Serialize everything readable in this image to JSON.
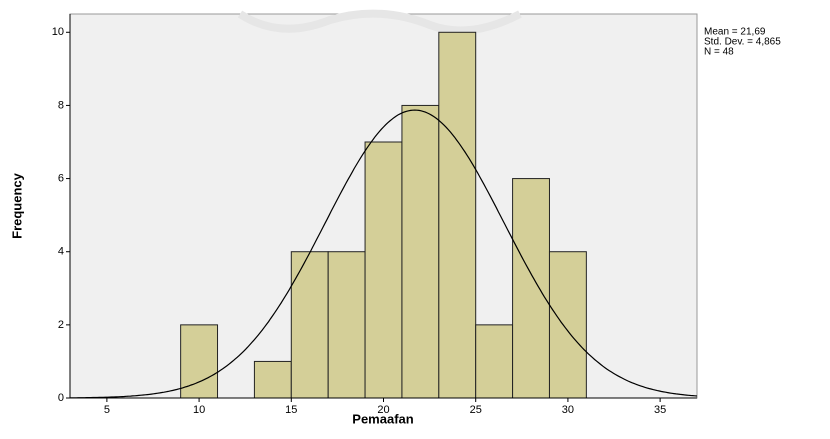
{
  "chart_data": {
    "type": "histogram",
    "xlabel": "Pemaafan",
    "ylabel": "Frequency",
    "bins": [
      9,
      11,
      13,
      15,
      17,
      19,
      21,
      23,
      25,
      27,
      29,
      31
    ],
    "counts": [
      2,
      0,
      1,
      4,
      4,
      7,
      8,
      10,
      2,
      6,
      4
    ],
    "color": "#d4cf98",
    "edgecolor": "#222222",
    "xlim": [
      3,
      37
    ],
    "ylim": [
      0,
      10.5
    ],
    "xticks": [
      5,
      10,
      15,
      20,
      25,
      30,
      35
    ],
    "yticks": [
      0,
      2,
      4,
      6,
      8,
      10
    ],
    "stats": [
      {
        "value": 21.69,
        "label": "Mean = 21,69"
      },
      {
        "value": 4.865,
        "label": "Std. Dev. = 4,865"
      },
      {
        "value": 48,
        "label": "N = 48"
      }
    ],
    "normal_curve": true
  }
}
